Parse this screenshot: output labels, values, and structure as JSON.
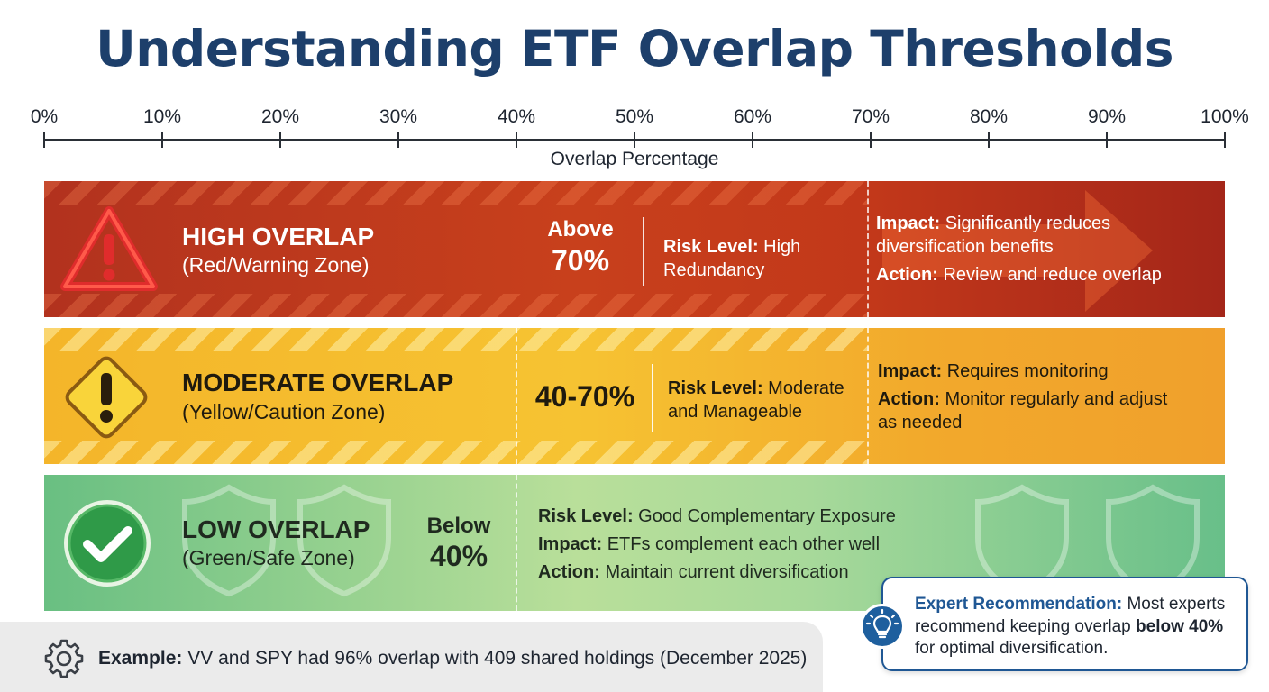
{
  "title": "Understanding ETF Overlap Thresholds",
  "scale": {
    "axis_title": "Overlap Percentage",
    "ticks": [
      "0%",
      "10%",
      "20%",
      "30%",
      "40%",
      "50%",
      "60%",
      "70%",
      "80%",
      "90%",
      "100%"
    ]
  },
  "zones": {
    "high": {
      "name": "HIGH OVERLAP",
      "sub": "(Red/Warning Zone)",
      "range_line1": "Above",
      "range_line2": "70%",
      "risk_label": "Risk Level:",
      "risk_value": "High",
      "risk_value2": "Redundancy",
      "impact_label": "Impact:",
      "impact_value": "Significantly reduces",
      "impact_value2": "diversification benefits",
      "action_label": "Action:",
      "action_value": "Review and reduce overlap",
      "color": "#c0391b"
    },
    "moderate": {
      "name": "MODERATE OVERLAP",
      "sub": "(Yellow/Caution Zone)",
      "range": "40-70%",
      "risk_label": "Risk Level:",
      "risk_value": "Moderate",
      "risk_value2": "and Manageable",
      "impact_label": "Impact:",
      "impact_value": "Requires monitoring",
      "action_label": "Action:",
      "action_value": "Monitor regularly and adjust",
      "action_value2": "as needed",
      "color": "#f5b82e"
    },
    "low": {
      "name": "LOW OVERLAP",
      "sub": "(Green/Safe Zone)",
      "range_line1": "Below",
      "range_line2": "40%",
      "risk_label": "Risk Level:",
      "risk_value": "Good Complementary Exposure",
      "impact_label": "Impact:",
      "impact_value": "ETFs complement each other well",
      "action_label": "Action:",
      "action_value": "Maintain current diversification",
      "color": "#6cc08a"
    }
  },
  "example": {
    "label": "Example:",
    "text": "VV and SPY had 96% overlap with 409 shared holdings (December 2025)"
  },
  "recommendation": {
    "lead": "Expert Recommendation:",
    "text1": "Most experts recommend keeping overlap",
    "bold": "below 40%",
    "text2": "for optimal diversification."
  },
  "icons": {
    "high": "warning-triangle-icon",
    "moderate": "caution-diamond-icon",
    "low": "checkmark-circle-icon",
    "example": "gear-icon",
    "recommendation": "lightbulb-icon",
    "background": "shield-icon"
  }
}
